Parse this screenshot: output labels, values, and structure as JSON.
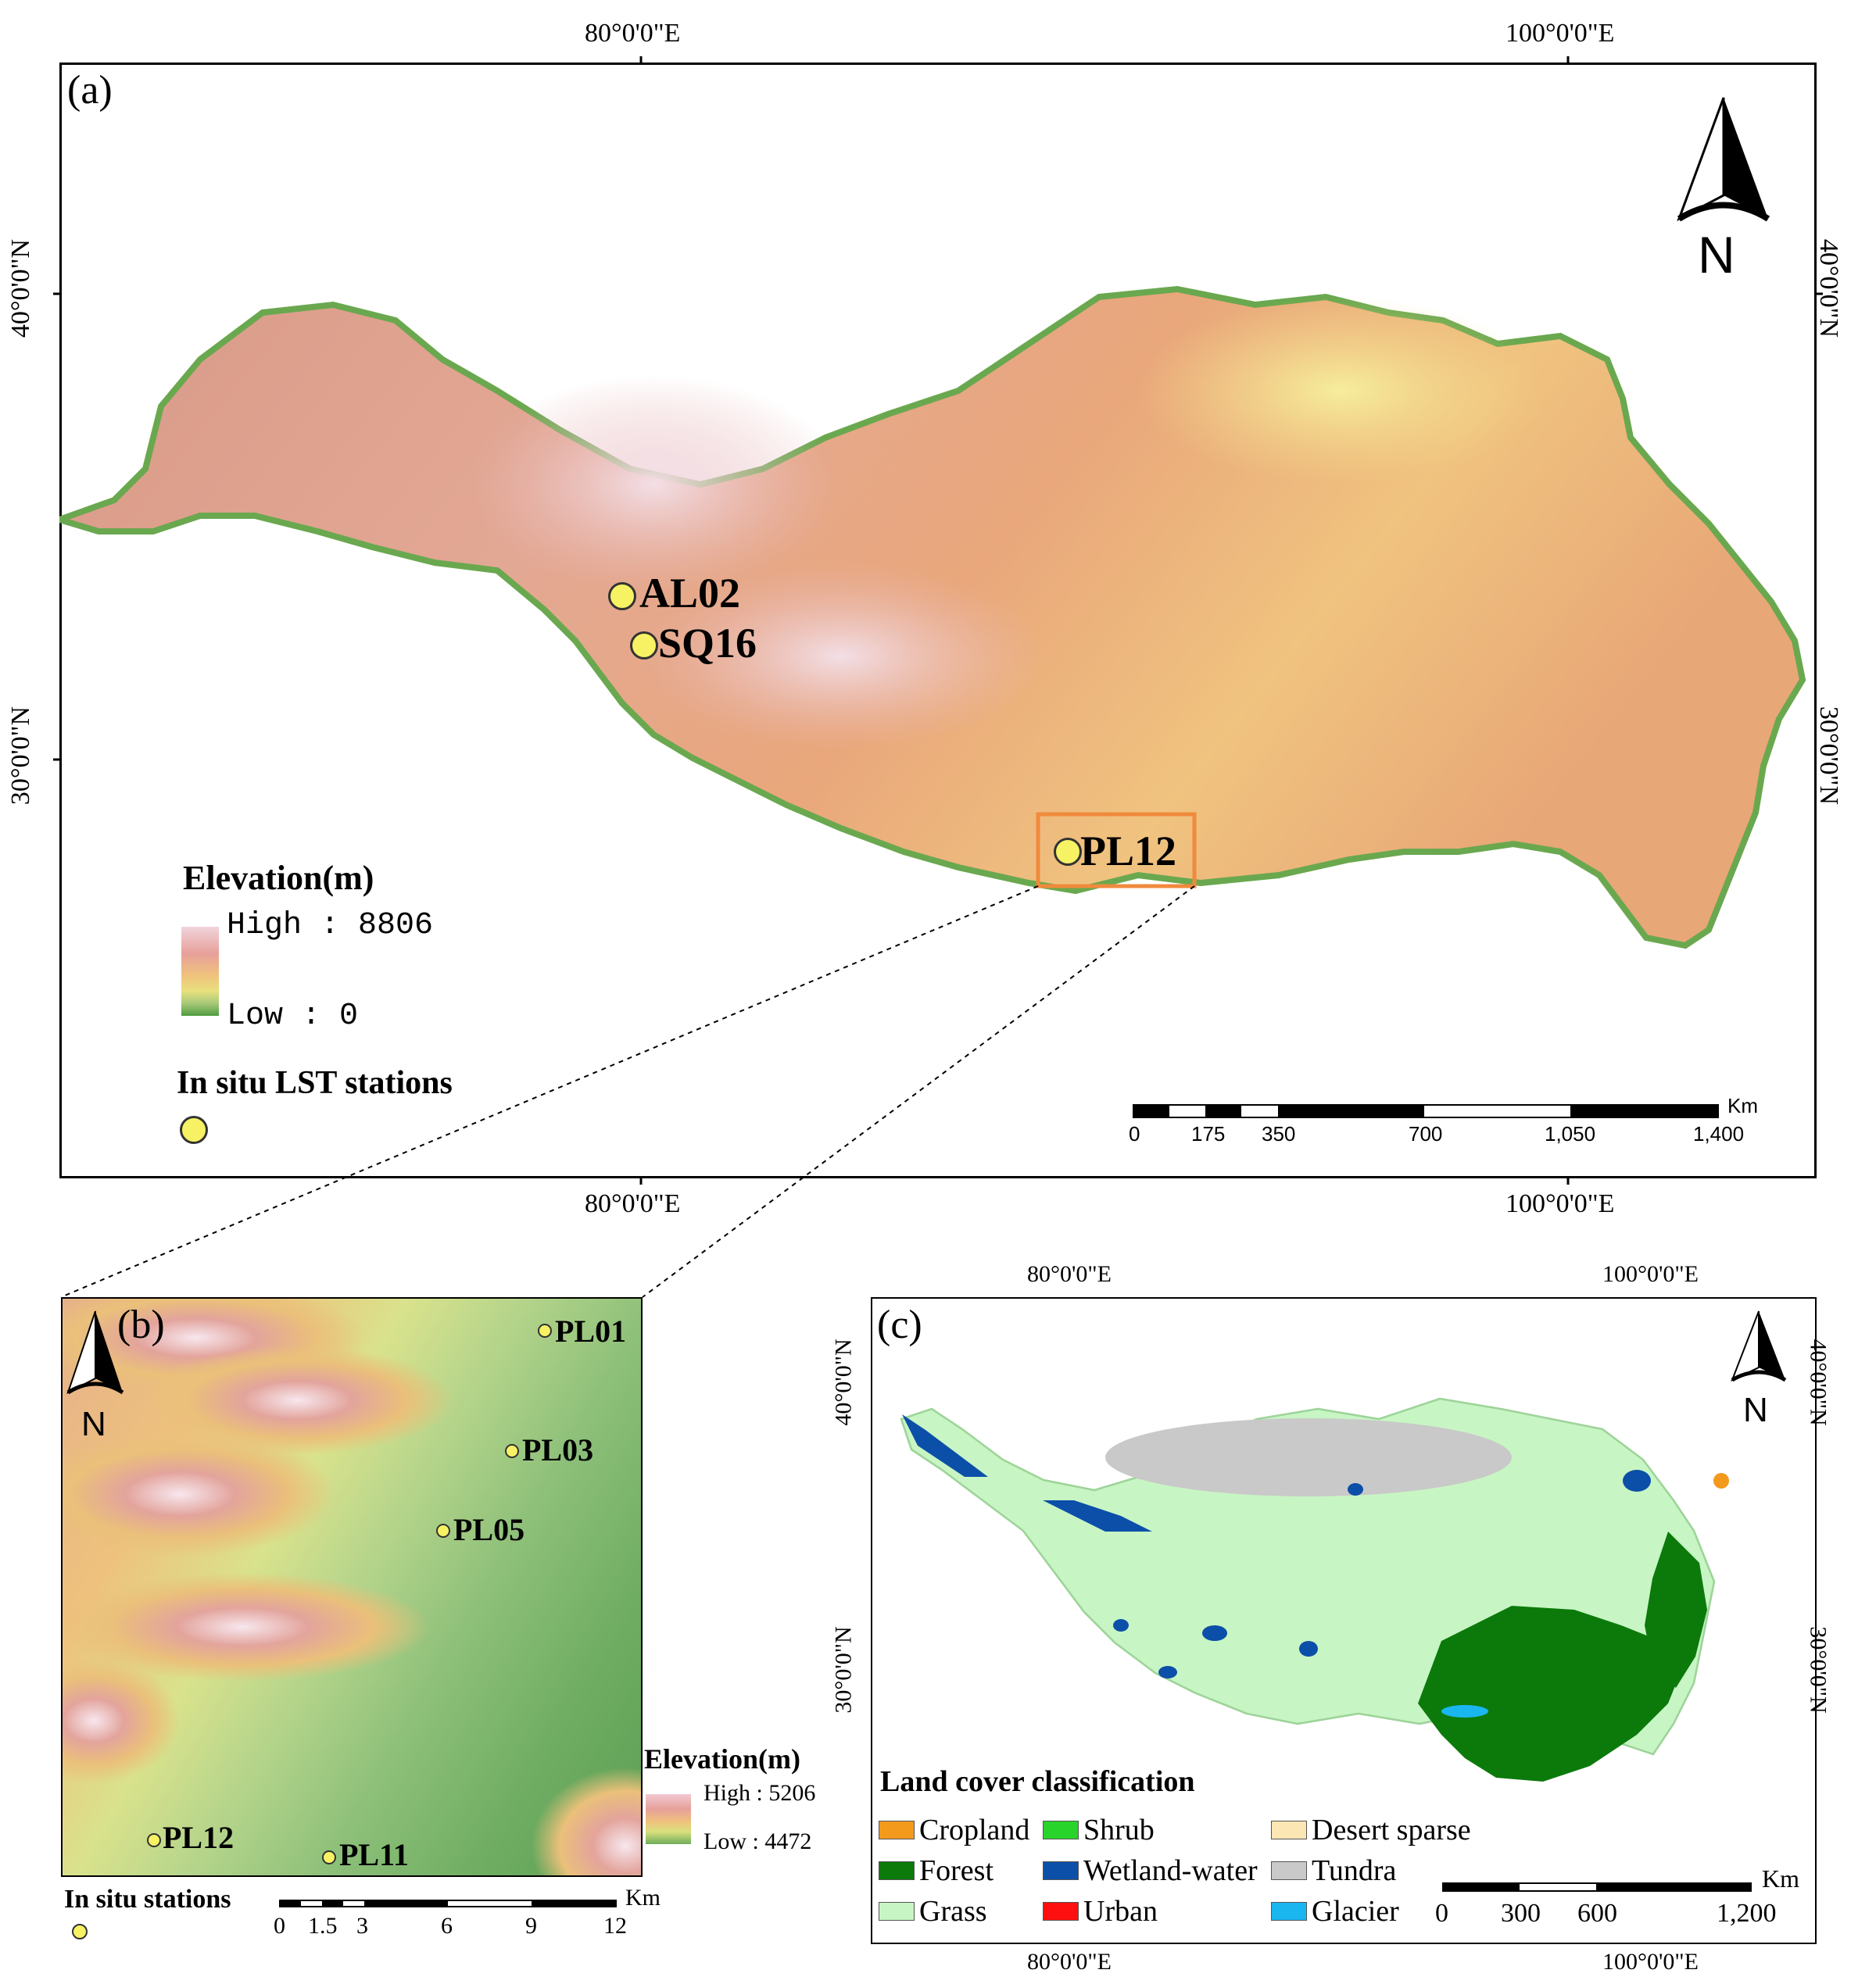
{
  "panel_a": {
    "label": "(a)",
    "top_ticks": [
      "80°0'0\"E",
      "100°0'0\"E"
    ],
    "bottom_ticks": [
      "80°0'0\"E",
      "100°0'0\"E"
    ],
    "left_ticks": [
      "40°0'0\"N",
      "30°0'0\"N"
    ],
    "right_ticks": [
      "40°0'0\"N",
      "30°0'0\"N"
    ],
    "north": "N",
    "stations": [
      {
        "name": "AL02"
      },
      {
        "name": "SQ16"
      },
      {
        "name": "PL12"
      }
    ],
    "elevation_legend": {
      "title": "Elevation(m)",
      "high": "High : 8806",
      "low": "Low : 0"
    },
    "stations_legend_title": "In situ LST stations",
    "scale": {
      "unit": "Km",
      "ticks": [
        "0",
        "175",
        "350",
        "700",
        "1,050",
        "1,400"
      ]
    }
  },
  "panel_b": {
    "label": "(b)",
    "north": "N",
    "stations": [
      {
        "name": "PL01"
      },
      {
        "name": "PL03"
      },
      {
        "name": "PL05"
      },
      {
        "name": "PL12"
      },
      {
        "name": "PL11"
      }
    ],
    "elevation_legend": {
      "title": "Elevation(m)",
      "high": "High : 5206",
      "low": "Low : 4472"
    },
    "stations_legend_title": "In situ stations",
    "scale": {
      "unit": "Km",
      "ticks": [
        "0",
        "1.5",
        "3",
        "6",
        "9",
        "12"
      ]
    }
  },
  "panel_c": {
    "label": "(c)",
    "top_ticks": [
      "80°0'0\"E",
      "100°0'0\"E"
    ],
    "bottom_ticks": [
      "80°0'0\"E",
      "100°0'0\"E"
    ],
    "left_ticks": [
      "40°0'0\"N",
      "30°0'0\"N"
    ],
    "right_ticks": [
      "40°0'0\"N",
      "30°0'0\"N"
    ],
    "north": "N",
    "legend_title": "Land cover classification",
    "classes": [
      {
        "name": "Cropland",
        "color": "#f39a1c"
      },
      {
        "name": "Shrub",
        "color": "#28d42a"
      },
      {
        "name": "Desert sparse",
        "color": "#fbe6b4"
      },
      {
        "name": "Forest",
        "color": "#0b7a0b"
      },
      {
        "name": "Wetland-water",
        "color": "#0b4fa8"
      },
      {
        "name": "Tundra",
        "color": "#c9c9c9"
      },
      {
        "name": "Grass",
        "color": "#c8f5c4"
      },
      {
        "name": "Urban",
        "color": "#ff1010"
      },
      {
        "name": "Glacier",
        "color": "#1ab6f0"
      }
    ],
    "scale": {
      "unit": "Km",
      "ticks": [
        "0",
        "300",
        "600",
        "1,200"
      ]
    }
  },
  "colors": {
    "station_fill": "#f6f264",
    "zoom_box": "#f08a3c"
  }
}
